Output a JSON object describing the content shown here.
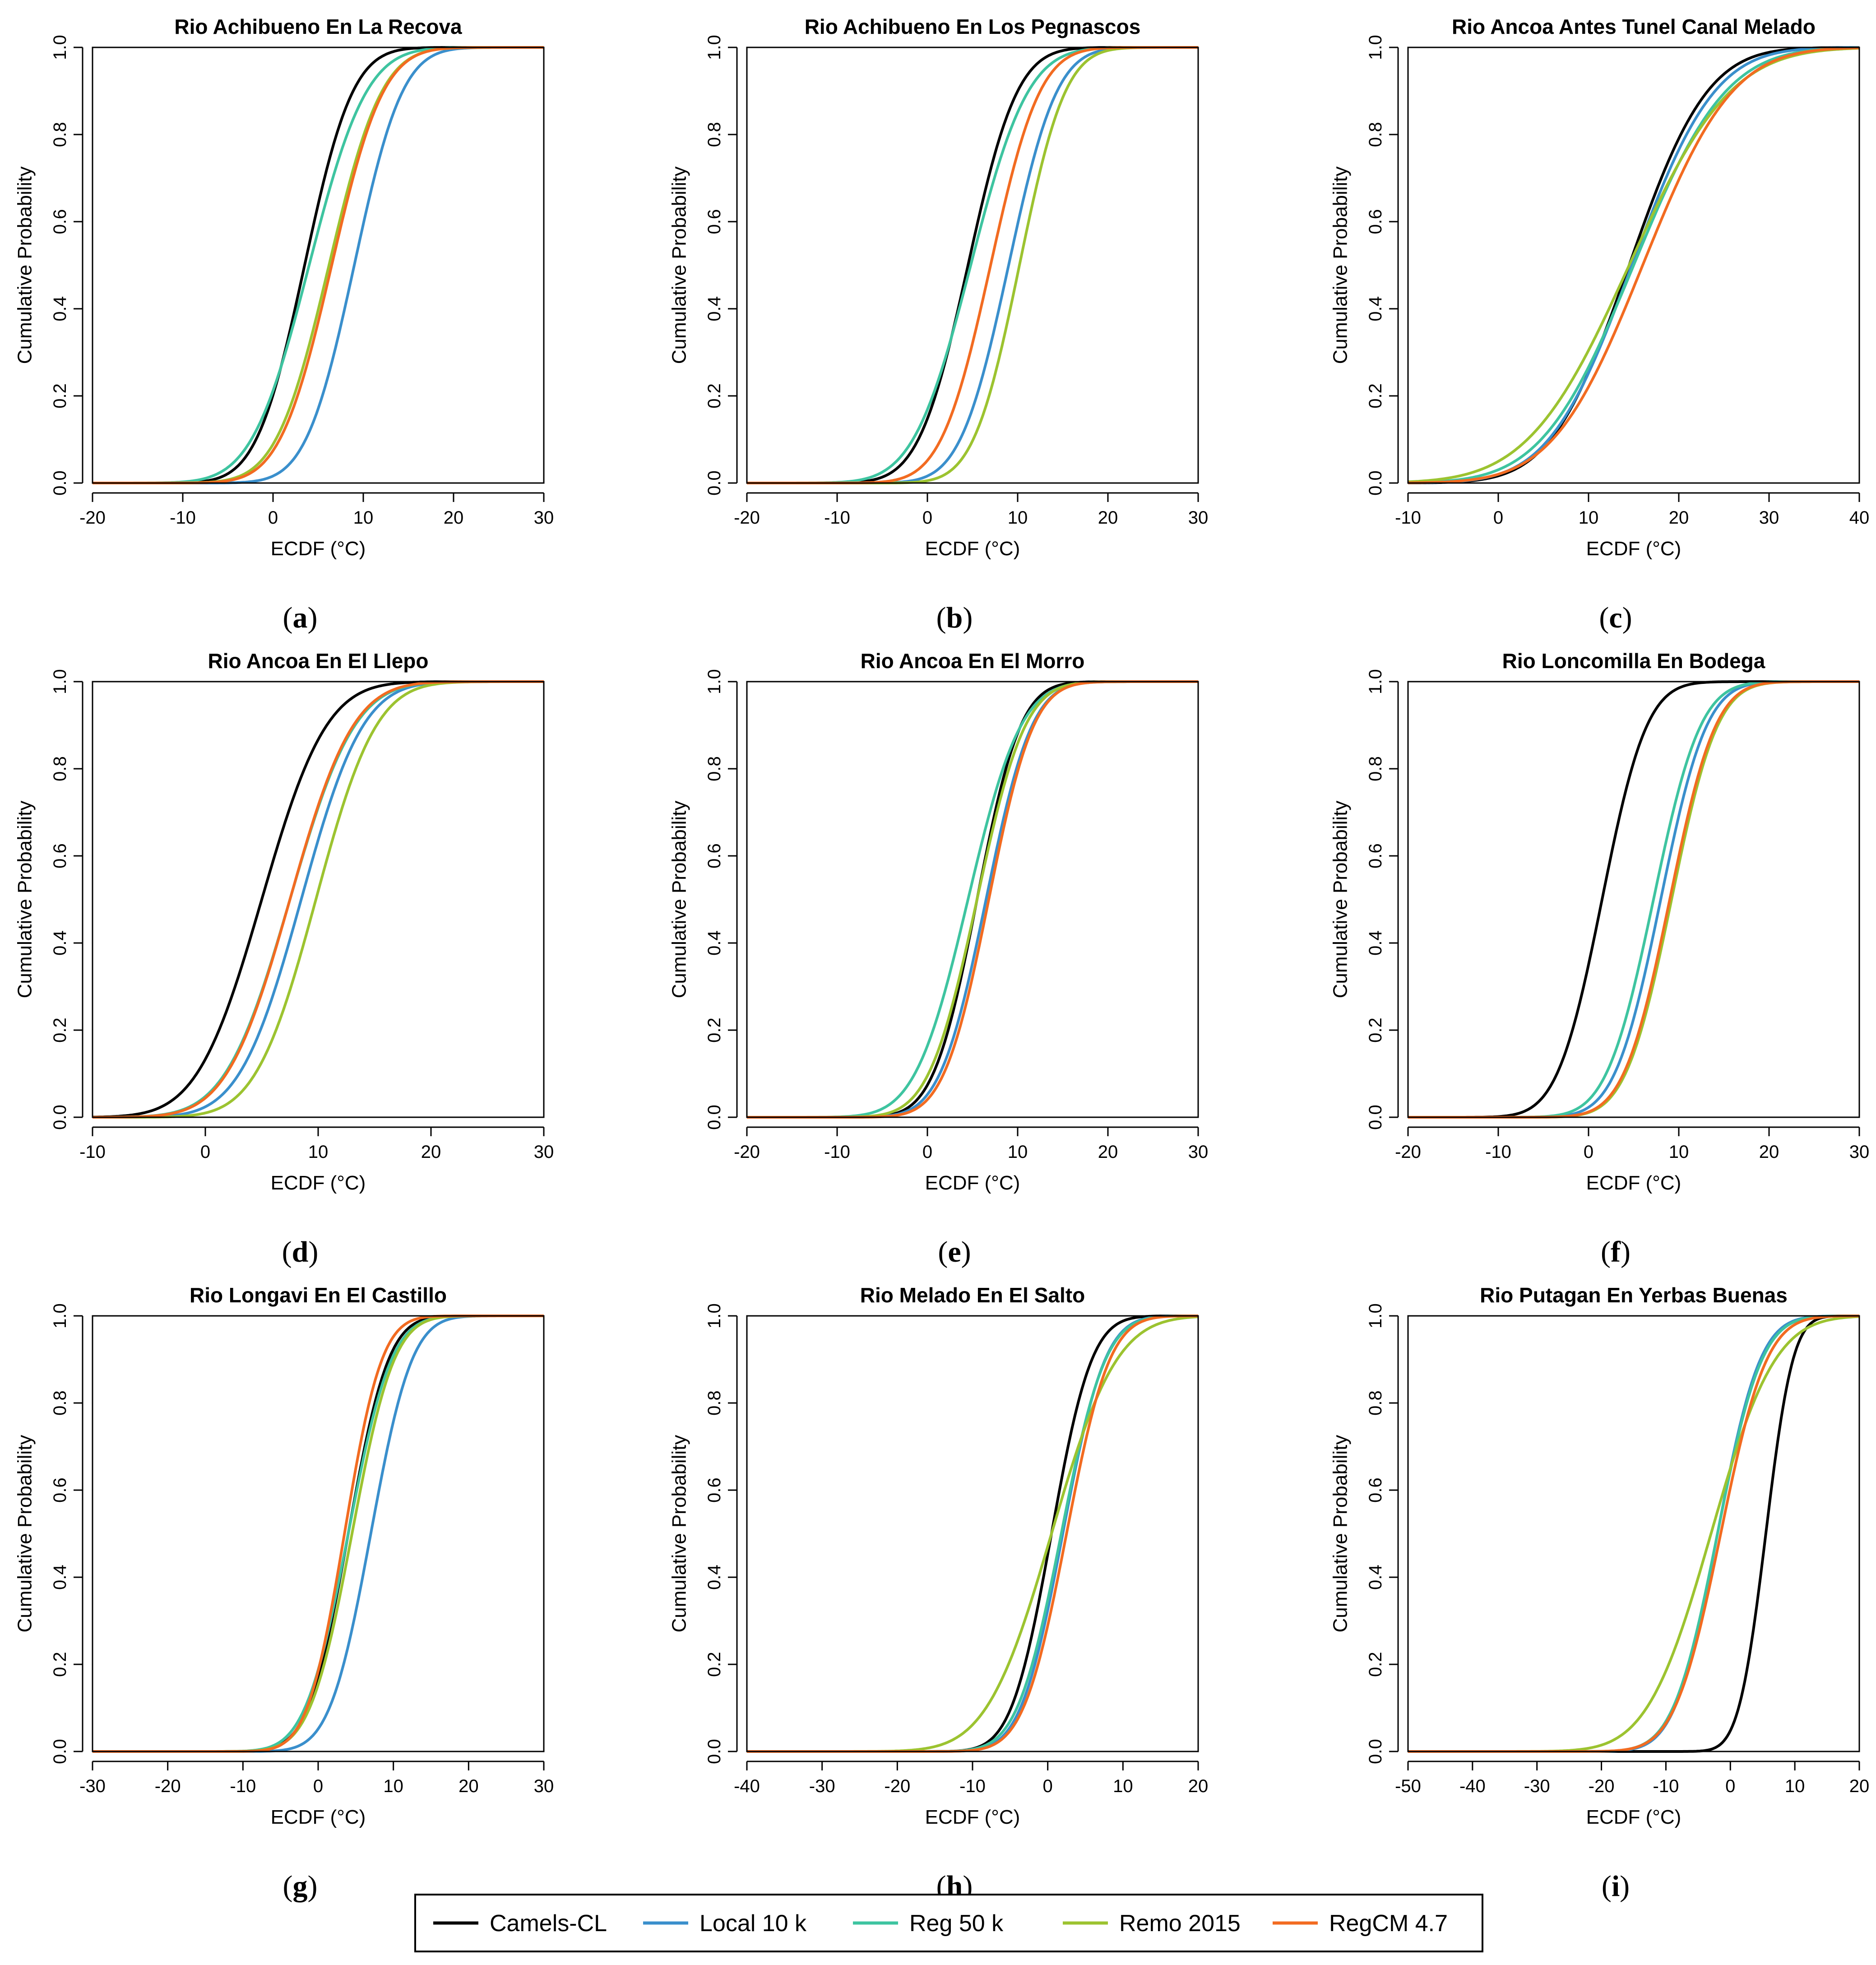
{
  "figure": {
    "series": [
      {
        "name": "Camels-CL",
        "color": "#000000"
      },
      {
        "name": "Local 10 k",
        "color": "#3A8FCC"
      },
      {
        "name": "Reg 50 k",
        "color": "#3EC4A0"
      },
      {
        "name": "Remo 2015",
        "color": "#9CC330"
      },
      {
        "name": "RegCM 4.7",
        "color": "#F26B21"
      }
    ],
    "y_label": "Cumulative Probability",
    "x_label": "ECDF (°C)"
  },
  "chart_data": [
    {
      "type": "line",
      "id": "a",
      "caption": "a",
      "title": "Rio Achibueno En La Recova",
      "xlabel": "ECDF (°C)",
      "ylabel": "Cumulative Probability",
      "xlim": [
        -20,
        30
      ],
      "ylim": [
        0,
        1
      ],
      "xticks": [
        -20,
        -10,
        0,
        10,
        20,
        30
      ],
      "yticks": [
        "0.0",
        "0.2",
        "0.4",
        "0.6",
        "0.8",
        "1.0"
      ],
      "series": [
        {
          "name": "Camels-CL",
          "mean": 3.5,
          "sd": 4.2
        },
        {
          "name": "Local 10 k",
          "mean": 9.0,
          "sd": 4.2
        },
        {
          "name": "Reg 50 k",
          "mean": 4.0,
          "sd": 5.0
        },
        {
          "name": "Remo 2015",
          "mean": 6.2,
          "sd": 4.6
        },
        {
          "name": "RegCM 4.7",
          "mean": 6.5,
          "sd": 4.5
        }
      ]
    },
    {
      "type": "line",
      "id": "b",
      "caption": "b",
      "title": "Rio Achibueno En Los Pegnascos",
      "xlabel": "ECDF (°C)",
      "ylabel": "Cumulative Probability",
      "xlim": [
        -20,
        30
      ],
      "ylim": [
        0,
        1
      ],
      "xticks": [
        -20,
        -10,
        0,
        10,
        20,
        30
      ],
      "yticks": [
        "0.0",
        "0.2",
        "0.4",
        "0.6",
        "0.8",
        "1.0"
      ],
      "series": [
        {
          "name": "Camels-CL",
          "mean": 4.5,
          "sd": 4.3
        },
        {
          "name": "Local 10 k",
          "mean": 9.0,
          "sd": 4.2
        },
        {
          "name": "Reg 50 k",
          "mean": 4.8,
          "sd": 5.0
        },
        {
          "name": "Remo 2015",
          "mean": 10.2,
          "sd": 4.0
        },
        {
          "name": "RegCM 4.7",
          "mean": 7.0,
          "sd": 4.3
        }
      ]
    },
    {
      "type": "line",
      "id": "c",
      "caption": "c",
      "title": "Rio Ancoa Antes Tunel Canal Melado",
      "xlabel": "ECDF (°C)",
      "ylabel": "Cumulative Probability",
      "xlim": [
        -10,
        40
      ],
      "ylim": [
        0,
        1
      ],
      "xticks": [
        -10,
        0,
        10,
        20,
        30,
        40
      ],
      "yticks": [
        "0.0",
        "0.2",
        "0.4",
        "0.6",
        "0.8",
        "1.0"
      ],
      "series": [
        {
          "name": "Camels-CL",
          "mean": 14.5,
          "sd": 6.8
        },
        {
          "name": "Local 10 k",
          "mean": 14.8,
          "sd": 7.2
        },
        {
          "name": "Reg 50 k",
          "mean": 15.0,
          "sd": 8.0
        },
        {
          "name": "Remo 2015",
          "mean": 14.5,
          "sd": 8.8
        },
        {
          "name": "RegCM 4.7",
          "mean": 16.0,
          "sd": 7.8
        }
      ]
    },
    {
      "type": "line",
      "id": "d",
      "caption": "d",
      "title": "Rio Ancoa En El Llepo",
      "xlabel": "ECDF (°C)",
      "ylabel": "Cumulative Probability",
      "xlim": [
        -10,
        30
      ],
      "ylim": [
        0,
        1
      ],
      "xticks": [
        -10,
        0,
        10,
        20,
        30
      ],
      "yticks": [
        "0.0",
        "0.2",
        "0.4",
        "0.6",
        "0.8",
        "1.0"
      ],
      "series": [
        {
          "name": "Camels-CL",
          "mean": 5.0,
          "sd": 4.5
        },
        {
          "name": "Local 10 k",
          "mean": 8.5,
          "sd": 4.3
        },
        {
          "name": "Reg 50 k",
          "mean": 7.5,
          "sd": 4.5
        },
        {
          "name": "Remo 2015",
          "mean": 9.8,
          "sd": 4.2
        },
        {
          "name": "RegCM 4.7",
          "mean": 7.5,
          "sd": 4.4
        }
      ]
    },
    {
      "type": "line",
      "id": "e",
      "caption": "e",
      "title": "Rio Ancoa En El Morro",
      "xlabel": "ECDF (°C)",
      "ylabel": "Cumulative Probability",
      "xlim": [
        -20,
        30
      ],
      "ylim": [
        0,
        1
      ],
      "xticks": [
        -20,
        -10,
        0,
        10,
        20,
        30
      ],
      "yticks": [
        "0.0",
        "0.2",
        "0.4",
        "0.6",
        "0.8",
        "1.0"
      ],
      "series": [
        {
          "name": "Camels-CL",
          "mean": 5.5,
          "sd": 3.8
        },
        {
          "name": "Local 10 k",
          "mean": 6.5,
          "sd": 4.0
        },
        {
          "name": "Reg 50 k",
          "mean": 4.5,
          "sd": 4.6
        },
        {
          "name": "Remo 2015",
          "mean": 5.5,
          "sd": 4.2
        },
        {
          "name": "RegCM 4.7",
          "mean": 6.8,
          "sd": 3.9
        }
      ]
    },
    {
      "type": "line",
      "id": "f",
      "caption": "f",
      "title": "Rio Loncomilla En Bodega",
      "xlabel": "ECDF (°C)",
      "ylabel": "Cumulative Probability",
      "xlim": [
        -20,
        30
      ],
      "ylim": [
        0,
        1
      ],
      "xticks": [
        -20,
        -10,
        0,
        10,
        20,
        30
      ],
      "yticks": [
        "0.0",
        "0.2",
        "0.4",
        "0.6",
        "0.8",
        "1.0"
      ],
      "series": [
        {
          "name": "Camels-CL",
          "mean": 1.5,
          "sd": 3.9
        },
        {
          "name": "Local 10 k",
          "mean": 8.0,
          "sd": 4.0
        },
        {
          "name": "Reg 50 k",
          "mean": 7.2,
          "sd": 4.1
        },
        {
          "name": "Remo 2015",
          "mean": 9.2,
          "sd": 4.0
        },
        {
          "name": "RegCM 4.7",
          "mean": 9.0,
          "sd": 4.0
        }
      ]
    },
    {
      "type": "line",
      "id": "g",
      "caption": "g",
      "title": "Rio Longavi En El Castillo",
      "xlabel": "ECDF (°C)",
      "ylabel": "Cumulative Probability",
      "xlim": [
        -30,
        30
      ],
      "ylim": [
        0,
        1
      ],
      "xticks": [
        -30,
        -20,
        -10,
        0,
        10,
        20,
        30
      ],
      "yticks": [
        "0.0",
        "0.2",
        "0.4",
        "0.6",
        "0.8",
        "1.0"
      ],
      "series": [
        {
          "name": "Camels-CL",
          "mean": 4.0,
          "sd": 4.2
        },
        {
          "name": "Local 10 k",
          "mean": 7.0,
          "sd": 4.3
        },
        {
          "name": "Reg 50 k",
          "mean": 4.0,
          "sd": 4.5
        },
        {
          "name": "Remo 2015",
          "mean": 4.5,
          "sd": 4.4
        },
        {
          "name": "RegCM 4.7",
          "mean": 3.5,
          "sd": 3.9
        }
      ]
    },
    {
      "type": "line",
      "id": "h",
      "caption": "h",
      "title": "Rio Melado En El Salto",
      "xlabel": "ECDF (°C)",
      "ylabel": "Cumulative Probability",
      "xlim": [
        -40,
        20
      ],
      "ylim": [
        0,
        1
      ],
      "xticks": [
        -40,
        -30,
        -20,
        -10,
        0,
        10,
        20
      ],
      "yticks": [
        "0.0",
        "0.2",
        "0.4",
        "0.6",
        "0.8",
        "1.0"
      ],
      "series": [
        {
          "name": "Camels-CL",
          "mean": 0.5,
          "sd": 4.2
        },
        {
          "name": "Local 10 k",
          "mean": 2.0,
          "sd": 4.4
        },
        {
          "name": "Reg 50 k",
          "mean": 1.8,
          "sd": 4.6
        },
        {
          "name": "Remo 2015",
          "mean": 0.5,
          "sd": 6.8
        },
        {
          "name": "RegCM 4.7",
          "mean": 2.5,
          "sd": 4.5
        }
      ]
    },
    {
      "type": "line",
      "id": "i",
      "caption": "i",
      "title": "Rio Putagan En Yerbas Buenas",
      "xlabel": "ECDF (°C)",
      "ylabel": "Cumulative Probability",
      "xlim": [
        -50,
        20
      ],
      "ylim": [
        0,
        1
      ],
      "xticks": [
        -50,
        -40,
        -30,
        -20,
        -10,
        0,
        10,
        20
      ],
      "yticks": [
        "0.0",
        "0.2",
        "0.4",
        "0.6",
        "0.8",
        "1.0"
      ],
      "series": [
        {
          "name": "Camels-CL",
          "mean": 5.5,
          "sd": 3.3
        },
        {
          "name": "Local 10 k",
          "mean": -2.0,
          "sd": 5.2
        },
        {
          "name": "Reg 50 k",
          "mean": -2.0,
          "sd": 5.4
        },
        {
          "name": "Remo 2015",
          "mean": -3.0,
          "sd": 7.8
        },
        {
          "name": "RegCM 4.7",
          "mean": -1.5,
          "sd": 5.6
        }
      ]
    }
  ]
}
